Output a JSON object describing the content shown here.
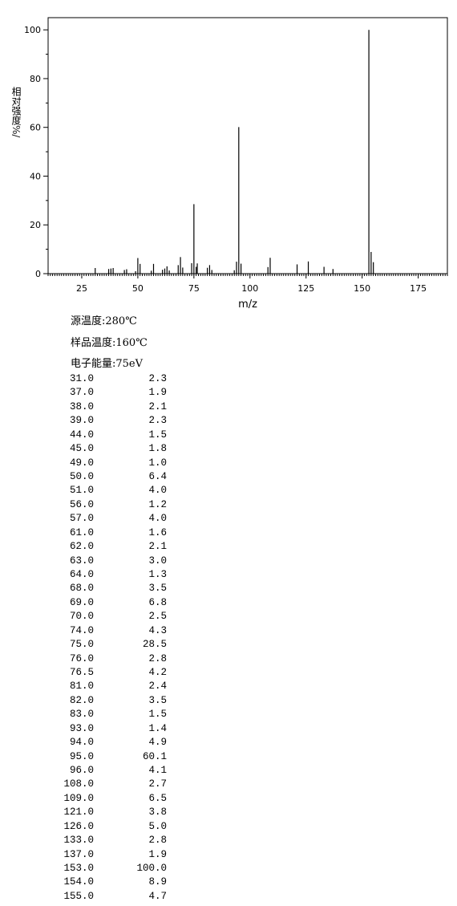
{
  "chart_data": {
    "type": "spectrum",
    "x_label": "m/z",
    "y_label": "相对强度%/",
    "x": [
      31,
      37,
      38,
      39,
      44,
      45,
      49,
      50,
      51,
      56,
      57,
      61,
      62,
      63,
      64,
      68,
      69,
      70,
      74,
      75,
      76,
      76.5,
      81,
      82,
      83,
      93,
      94,
      95,
      96,
      108,
      109,
      121,
      126,
      133,
      137,
      153,
      154,
      155
    ],
    "values": [
      2.3,
      1.9,
      2.1,
      2.3,
      1.5,
      1.8,
      1.0,
      6.4,
      4.0,
      1.2,
      4.0,
      1.6,
      2.1,
      3.0,
      1.3,
      3.5,
      6.8,
      2.5,
      4.3,
      28.5,
      2.8,
      4.2,
      2.4,
      3.5,
      1.5,
      1.4,
      4.9,
      60.1,
      4.1,
      2.7,
      6.5,
      3.8,
      5.0,
      2.8,
      1.9,
      100.0,
      8.9,
      4.7
    ],
    "color": "#000000",
    "xlim": [
      10,
      188
    ],
    "xticks": [
      25,
      50,
      75,
      100,
      125,
      150,
      175
    ],
    "ylim": [
      0,
      105
    ],
    "yticks": [
      0,
      20,
      40,
      60,
      80,
      100
    ]
  },
  "conditions": [
    "源温度:280℃",
    "样品温度:160℃",
    "电子能量:75eV"
  ],
  "table": {
    "rows": [
      [
        "31.0",
        "2.3"
      ],
      [
        "37.0",
        "1.9"
      ],
      [
        "38.0",
        "2.1"
      ],
      [
        "39.0",
        "2.3"
      ],
      [
        "44.0",
        "1.5"
      ],
      [
        "45.0",
        "1.8"
      ],
      [
        "49.0",
        "1.0"
      ],
      [
        "50.0",
        "6.4"
      ],
      [
        "51.0",
        "4.0"
      ],
      [
        "56.0",
        "1.2"
      ],
      [
        "57.0",
        "4.0"
      ],
      [
        "61.0",
        "1.6"
      ],
      [
        "62.0",
        "2.1"
      ],
      [
        "63.0",
        "3.0"
      ],
      [
        "64.0",
        "1.3"
      ],
      [
        "68.0",
        "3.5"
      ],
      [
        "69.0",
        "6.8"
      ],
      [
        "70.0",
        "2.5"
      ],
      [
        "74.0",
        "4.3"
      ],
      [
        "75.0",
        "28.5"
      ],
      [
        "76.0",
        "2.8"
      ],
      [
        "76.5",
        "4.2"
      ],
      [
        "81.0",
        "2.4"
      ],
      [
        "82.0",
        "3.5"
      ],
      [
        "83.0",
        "1.5"
      ],
      [
        "93.0",
        "1.4"
      ],
      [
        "94.0",
        "4.9"
      ],
      [
        "95.0",
        "60.1"
      ],
      [
        "96.0",
        "4.1"
      ],
      [
        "108.0",
        "2.7"
      ],
      [
        "109.0",
        "6.5"
      ],
      [
        "121.0",
        "3.8"
      ],
      [
        "126.0",
        "5.0"
      ],
      [
        "133.0",
        "2.8"
      ],
      [
        "137.0",
        "1.9"
      ],
      [
        "153.0",
        "100.0"
      ],
      [
        "154.0",
        "8.9"
      ],
      [
        "155.0",
        "4.7"
      ]
    ]
  }
}
